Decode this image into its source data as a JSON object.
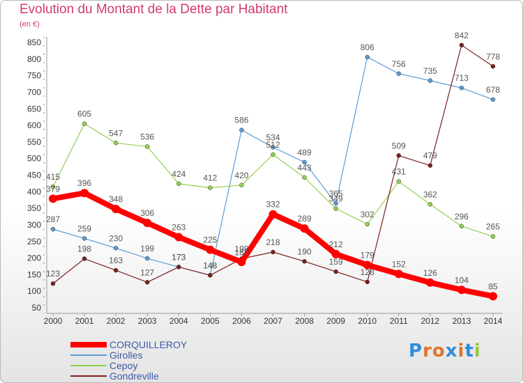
{
  "title": "Evolution du Montant de la Dette par Habitant",
  "subtitle": "(en €)",
  "brand": {
    "text": "Proxiti",
    "colors": [
      "#2e8ddb",
      "#e0752a",
      "#e0752a",
      "#2e8ddb",
      "#e0752a",
      "#2e8ddb",
      "#9ac244"
    ]
  },
  "chart_data": {
    "type": "line",
    "x": [
      "2000",
      "2001",
      "2002",
      "2003",
      "2004",
      "2005",
      "2006",
      "2007",
      "2008",
      "2009",
      "2010",
      "2011",
      "2012",
      "2013",
      "2014"
    ],
    "yticks": [
      50,
      100,
      150,
      200,
      250,
      300,
      350,
      400,
      450,
      500,
      550,
      600,
      650,
      700,
      750,
      800,
      850
    ],
    "ylim": [
      50,
      850
    ],
    "grid": false,
    "legend_position": "bottom-left",
    "series": [
      {
        "name": "CORQUILLEROY",
        "color": "#ff0000",
        "values": [
          379,
          396,
          348,
          306,
          263,
          225,
          188,
          332,
          289,
          212,
          179,
          152,
          126,
          104,
          85
        ]
      },
      {
        "name": "Girolles",
        "color": "#5b9bd5",
        "values": [
          287,
          259,
          230,
          199,
          173,
          148,
          586,
          534,
          489,
          365,
          806,
          756,
          735,
          713,
          678
        ]
      },
      {
        "name": "Cepoy",
        "color": "#92d050",
        "values": [
          415,
          605,
          547,
          536,
          424,
          412,
          420,
          512,
          443,
          349,
          302,
          431,
          362,
          296,
          265
        ]
      },
      {
        "name": "Gondreville",
        "color": "#7b1e1e",
        "values": [
          123,
          198,
          163,
          127,
          173,
          148,
          198,
          218,
          190,
          159,
          128,
          509,
          479,
          842,
          778
        ]
      }
    ]
  }
}
